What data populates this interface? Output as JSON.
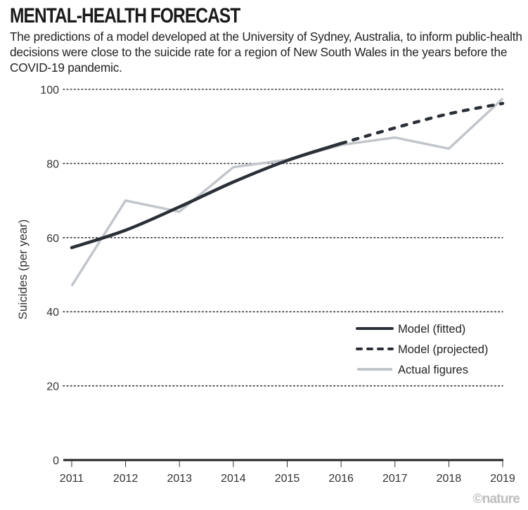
{
  "header": {
    "title": "MENTAL-HEALTH FORECAST",
    "subtitle": "The predictions of a model developed at the University of Sydney, Australia, to inform public-health decisions were close to the suicide rate for a region of New South Wales in the years before the COVID-19 pandemic."
  },
  "credit": "©nature",
  "colors": {
    "model": "#2b3038",
    "actual": "#c2c6cb",
    "grid": "#333333"
  },
  "chart_data": {
    "type": "line",
    "title": "MENTAL-HEALTH FORECAST",
    "xlabel": "",
    "ylabel": "Suicides (per year)",
    "x": [
      2011,
      2012,
      2013,
      2014,
      2015,
      2016,
      2017,
      2018,
      2019
    ],
    "xlim": [
      2011,
      2019
    ],
    "ylim": [
      0,
      100
    ],
    "yticks": [
      0,
      20,
      40,
      60,
      80,
      100
    ],
    "xticks": [
      "2011",
      "2012",
      "2013",
      "2014",
      "2015",
      "2016",
      "2017",
      "2018",
      "2019"
    ],
    "grid": "horizontal dotted",
    "legend_position": "right-middle",
    "series": [
      {
        "name": "Model (fitted)",
        "style": "solid",
        "x": [
          2011,
          2012,
          2013,
          2014,
          2015,
          2016
        ],
        "values": [
          57.3,
          62.0,
          68.3,
          75.0,
          80.8,
          85.4
        ]
      },
      {
        "name": "Model (projected)",
        "style": "dashed",
        "x": [
          2016,
          2017,
          2018,
          2019
        ],
        "values": [
          85.4,
          89.6,
          93.4,
          96.2
        ]
      },
      {
        "name": "Actual figures",
        "style": "solid-gray",
        "x": [
          2011,
          2012,
          2013,
          2014,
          2015,
          2016,
          2017,
          2018,
          2019
        ],
        "values": [
          47,
          70,
          67,
          79,
          81,
          85,
          87,
          84,
          97.5
        ]
      }
    ]
  }
}
